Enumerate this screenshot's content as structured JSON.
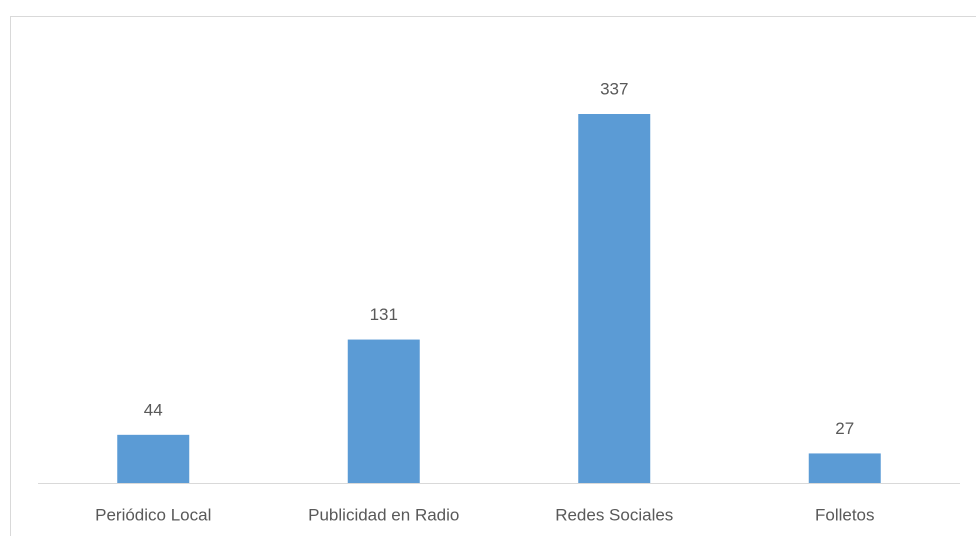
{
  "chart_data": {
    "type": "bar",
    "categories": [
      "Periódico Local",
      "Publicidad en Radio",
      "Redes Sociales",
      "Folletos"
    ],
    "values": [
      44,
      131,
      337,
      27
    ],
    "color": "#5b9bd5"
  }
}
